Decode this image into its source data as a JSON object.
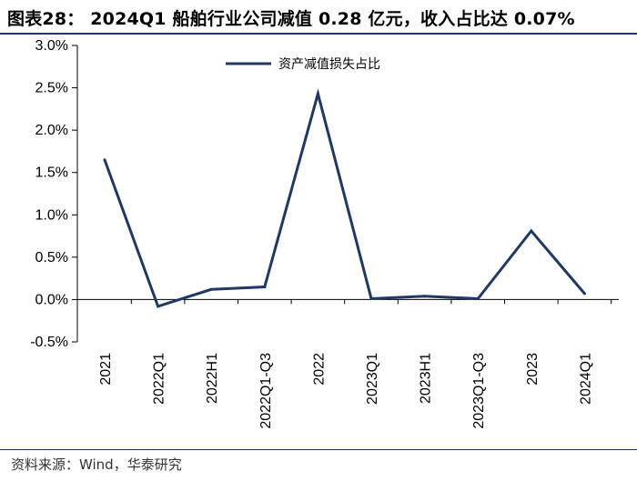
{
  "header": {
    "title": "图表28： 2024Q1 船舶行业公司减值 0.28 亿元，收入占比达 0.07%"
  },
  "footer": {
    "source": "资料来源：Wind，华泰研究"
  },
  "colors": {
    "series": "#1f3864",
    "rule": "#1f3864"
  },
  "chart_data": {
    "type": "line",
    "categories": [
      "2021",
      "2022Q1",
      "2022H1",
      "2022Q1-Q3",
      "2022",
      "2023Q1",
      "2023H1",
      "2023Q1-Q3",
      "2023",
      "2024Q1"
    ],
    "series": [
      {
        "name": "资产减值损失占比",
        "values": [
          1.65,
          -0.08,
          0.12,
          0.15,
          2.43,
          0.01,
          0.04,
          0.01,
          0.81,
          0.07
        ]
      }
    ],
    "yticks": [
      "3.0%",
      "2.5%",
      "2.0%",
      "1.5%",
      "1.0%",
      "0.5%",
      "0.0%",
      "-0.5%"
    ],
    "ylim": [
      -0.5,
      3.0
    ],
    "legend_position": "top-center",
    "grid": false
  }
}
